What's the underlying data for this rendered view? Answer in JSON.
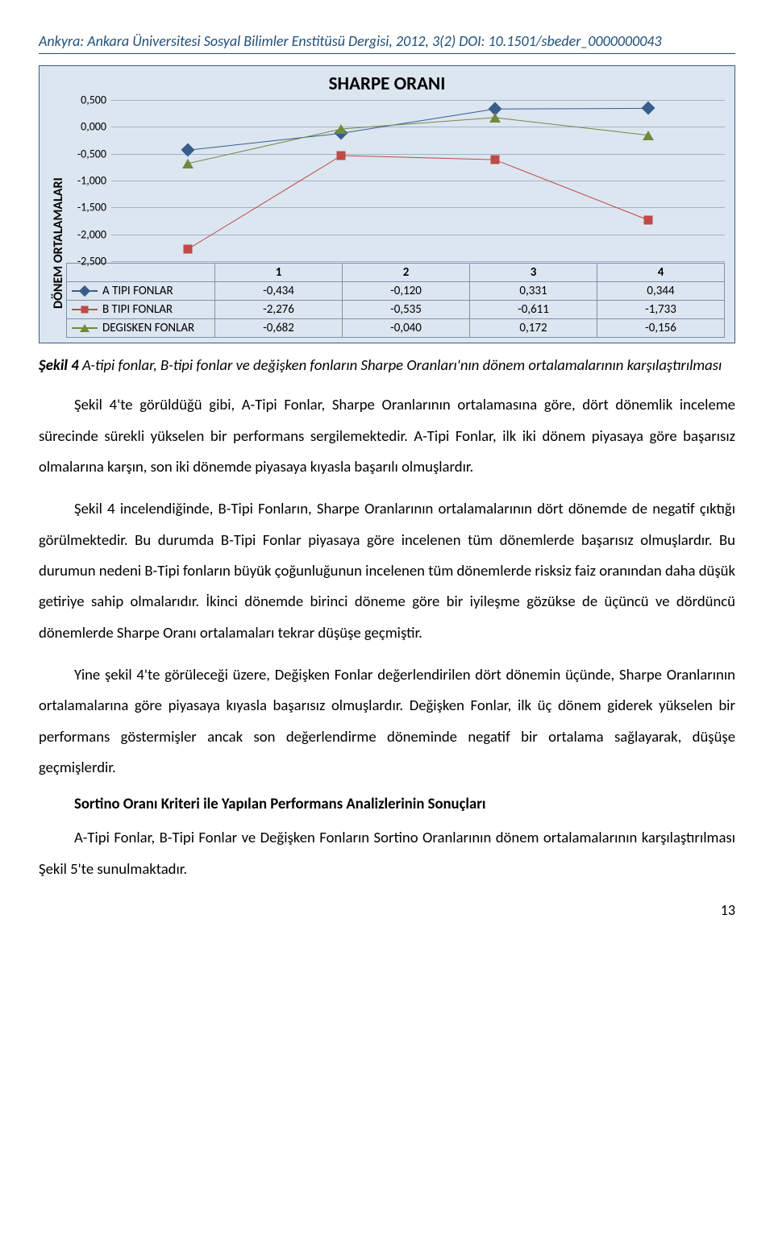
{
  "running_head": "Ankyra: Ankara Üniversitesi Sosyal Bilimler Enstitüsü Dergisi, 2012, 3(2) DOI: 10.1501/sbeder_0000000043",
  "chart": {
    "title": "SHARPE ORANI",
    "ylabel": "DÖNEM ORTALAMALARI",
    "ylim": [
      -2.5,
      0.5
    ],
    "ytick_step": 0.5,
    "yticks": [
      "0,500",
      "0,000",
      "-0,500",
      "-1,000",
      "-1,500",
      "-2,000",
      "-2,500"
    ],
    "categories": [
      "1",
      "2",
      "3",
      "4"
    ],
    "grid_color": "#9fb3cc",
    "background_color": "#dce6f1",
    "border_color": "#395a8a",
    "series": [
      {
        "name": "A TIPI FONLAR",
        "marker": "diamond",
        "color": "#385d8a",
        "values_raw": [
          -0.434,
          -0.12,
          0.331,
          0.344
        ],
        "values": [
          "-0,434",
          "-0,120",
          "0,331",
          "0,344"
        ]
      },
      {
        "name": "B TIPI FONLAR",
        "marker": "square",
        "color": "#be4b48",
        "values_raw": [
          -2.276,
          -0.535,
          -0.611,
          -1.733
        ],
        "values": [
          "-2,276",
          "-0,535",
          "-0,611",
          "-1,733"
        ]
      },
      {
        "name": "DEGISKEN FONLAR",
        "marker": "triangle",
        "color": "#71893f",
        "values_raw": [
          -0.682,
          -0.04,
          0.172,
          -0.156
        ],
        "values": [
          "-0,682",
          "-0,040",
          "0,172",
          "-0,156"
        ]
      }
    ]
  },
  "caption_lead": "Şekil 4",
  "caption_rest": " A-tipi fonlar, B-tipi fonlar ve değişken fonların Sharpe Oranları'nın dönem ortalamalarının karşılaştırılması",
  "para1": "Şekil 4'te görüldüğü gibi, A-Tipi Fonlar, Sharpe Oranlarının ortalamasına göre, dört dönemlik inceleme sürecinde sürekli yükselen bir performans sergilemektedir. A-Tipi Fonlar, ilk iki dönem piyasaya göre başarısız olmalarına karşın, son iki dönemde piyasaya kıyasla başarılı olmuşlardır.",
  "para2": "Şekil 4 incelendiğinde, B-Tipi Fonların, Sharpe Oranlarının ortalamalarının dört dönemde de negatif çıktığı görülmektedir. Bu durumda B-Tipi Fonlar piyasaya göre incelenen tüm dönemlerde başarısız olmuşlardır. Bu durumun nedeni B-Tipi fonların büyük çoğunluğunun incelenen tüm dönemlerde risksiz faiz oranından daha düşük getiriye sahip olmalarıdır. İkinci dönemde birinci döneme göre bir iyileşme gözükse de üçüncü ve dördüncü dönemlerde Sharpe Oranı ortalamaları tekrar düşüşe geçmiştir.",
  "para3": "Yine şekil 4'te görüleceği üzere, Değişken Fonlar değerlendirilen dört dönemin üçünde, Sharpe Oranlarının ortalamalarına göre piyasaya kıyasla başarısız olmuşlardır. Değişken Fonlar, ilk üç dönem giderek yükselen bir performans göstermişler ancak son değerlendirme döneminde negatif bir ortalama sağlayarak, düşüşe geçmişlerdir.",
  "subheading": "Sortino Oranı Kriteri ile Yapılan Performans Analizlerinin Sonuçları",
  "para4": "A-Tipi Fonlar, B-Tipi Fonlar ve Değişken Fonların Sortino Oranlarının dönem ortalamalarının karşılaştırılması Şekil 5'te sunulmaktadır.",
  "page_number": "13"
}
